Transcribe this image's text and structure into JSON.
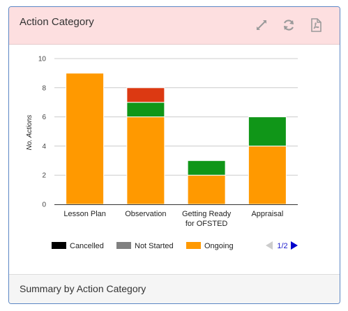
{
  "panel": {
    "title": "Action Category",
    "footer": "Summary by Action Category",
    "icons": [
      "expand-icon",
      "refresh-icon",
      "pdf-icon"
    ]
  },
  "chart_data": {
    "type": "bar",
    "stacked": true,
    "categories": [
      "Lesson Plan",
      "Observation",
      "Getting Ready|for OFSTED",
      "Appraisal"
    ],
    "series": [
      {
        "name": "Ongoing",
        "color": "#ff9900",
        "values": [
          9,
          6,
          2,
          4
        ]
      },
      {
        "name": "",
        "color": "#109618",
        "values": [
          0,
          1,
          1,
          2
        ]
      },
      {
        "name": "",
        "color": "#dc3912",
        "values": [
          0,
          1,
          0,
          0
        ]
      }
    ],
    "legend": [
      {
        "name": "Cancelled",
        "color": "#000000"
      },
      {
        "name": "Not Started",
        "color": "#808080"
      },
      {
        "name": "Ongoing",
        "color": "#ff9900"
      }
    ],
    "legend_page": "1/2",
    "ylabel": "No. Actions",
    "ylim": [
      0,
      10
    ],
    "yticks": [
      0,
      2,
      4,
      6,
      8,
      10
    ],
    "grid": true,
    "legend_position": "bottom"
  }
}
